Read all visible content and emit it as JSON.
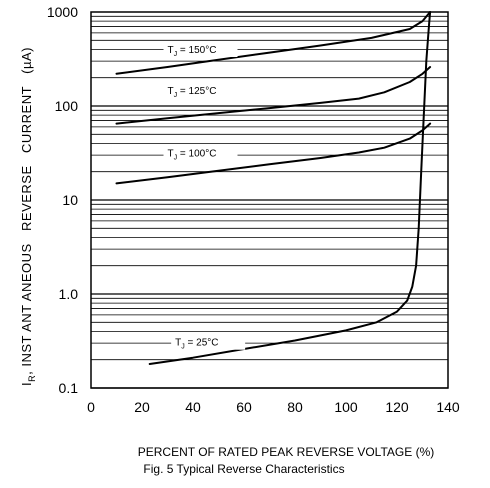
{
  "chart_data": {
    "type": "line",
    "title": "Fig. 5 Typical Reverse Characteristics",
    "xlabel": "PERCENT OF RATED PEAK REVERSE VOLTAGE (%)",
    "ylabel": "IR, INSTANTANEOUS REVERSE CURRENT (µA)",
    "ylabel_parts": {
      "symbol": "I",
      "subscript": "R",
      "text": ", INST ANT ANEOUS   REVERSE   CURRENT   (µA)"
    },
    "x_ticks": [
      "0",
      "20",
      "40",
      "60",
      "80",
      "100",
      "120",
      "140"
    ],
    "y_ticks": [
      "0.1",
      "1.0",
      "10",
      "100",
      "1000"
    ],
    "xlim": [
      0,
      140
    ],
    "ylim": [
      0.1,
      1000
    ],
    "y_scale": "log",
    "grid": true,
    "series": [
      {
        "name": "TJ = 150°C",
        "label_parts": {
          "symbol": "T",
          "subscript": "J",
          "text": " = 150°C"
        },
        "x": [
          10,
          30,
          50,
          70,
          90,
          110,
          125,
          130,
          133
        ],
        "y": [
          220,
          260,
          310,
          370,
          440,
          530,
          660,
          800,
          1000
        ]
      },
      {
        "name": "TJ = 125°C",
        "label_parts": {
          "symbol": "T",
          "subscript": "J",
          "text": " = 125°C"
        },
        "x": [
          10,
          30,
          50,
          70,
          90,
          105,
          115,
          125,
          130,
          133
        ],
        "y": [
          65,
          74,
          84,
          95,
          108,
          120,
          140,
          180,
          220,
          260
        ]
      },
      {
        "name": "TJ = 100°C",
        "label_parts": {
          "symbol": "T",
          "subscript": "J",
          "text": " = 100°C"
        },
        "x": [
          10,
          30,
          50,
          70,
          90,
          105,
          115,
          125,
          130,
          133
        ],
        "y": [
          15,
          17.5,
          20.5,
          24,
          28,
          32,
          36,
          45,
          55,
          65
        ]
      },
      {
        "name": "TJ = 25°C",
        "label_parts": {
          "symbol": "T",
          "subscript": "J",
          "text": " = 25°C"
        },
        "x": [
          23,
          40,
          60,
          80,
          100,
          112,
          120,
          124,
          126,
          127.5,
          128.5,
          129.5,
          130.5,
          131.5,
          132.5,
          133
        ],
        "y": [
          0.18,
          0.21,
          0.26,
          0.32,
          0.41,
          0.5,
          0.65,
          0.85,
          1.2,
          2,
          5,
          20,
          80,
          300,
          700,
          1000
        ]
      }
    ]
  }
}
